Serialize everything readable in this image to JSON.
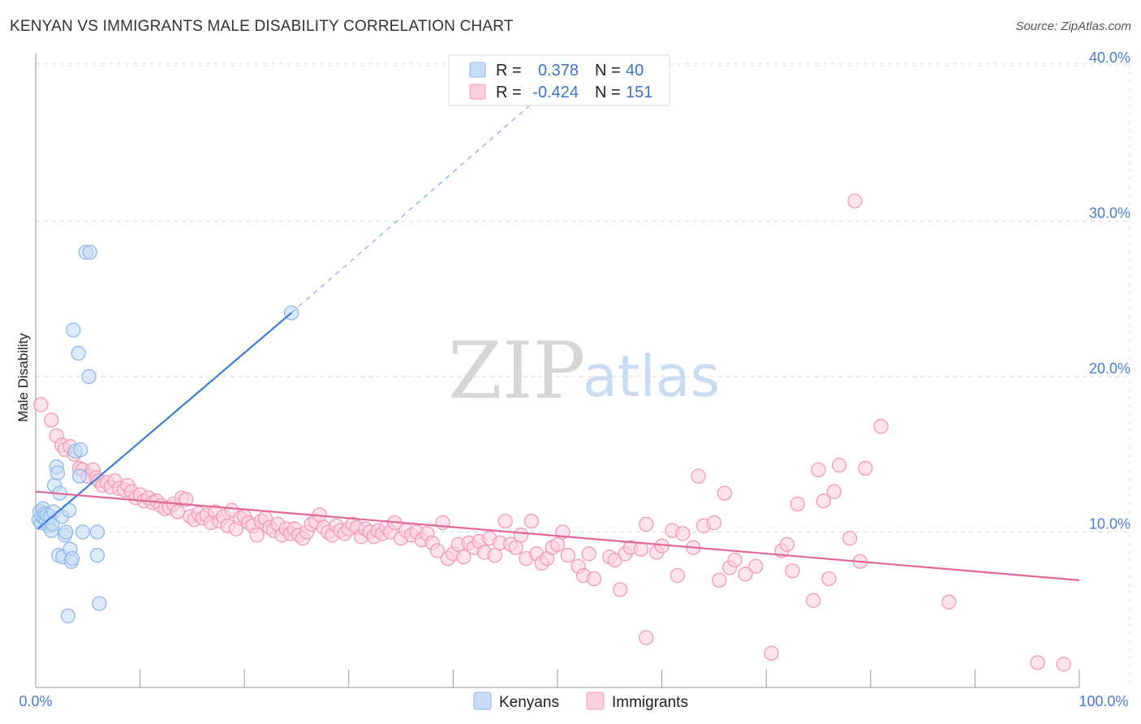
{
  "title": "KENYAN VS IMMIGRANTS MALE DISABILITY CORRELATION CHART",
  "source": "Source: ZipAtlas.com",
  "watermark": {
    "part1": "ZIP",
    "part2": "atlas"
  },
  "legend": {
    "rows": [
      {
        "r_label": "R =",
        "r_value": "0.378",
        "n_label": "N =",
        "n_value": "40",
        "color": "#8fb8ea",
        "fill": "#c7dcf6"
      },
      {
        "r_label": "R =",
        "r_value": "-0.424",
        "n_label": "N =",
        "n_value": "151",
        "color": "#f09ab8",
        "fill": "#fbd0de"
      }
    ]
  },
  "bottom_legend": [
    {
      "label": "Kenyans",
      "color": "#8fb8ea",
      "fill": "#c7dcf6"
    },
    {
      "label": "Immigrants",
      "color": "#f09ab8",
      "fill": "#fbd0de"
    }
  ],
  "chart_data": {
    "type": "scatter",
    "title": "KENYAN VS IMMIGRANTS MALE DISABILITY CORRELATION CHART",
    "xlabel": "",
    "ylabel": "Male Disability",
    "xlim": [
      0,
      100
    ],
    "ylim": [
      0,
      40
    ],
    "x_tick_labels": [
      "0.0%",
      "100.0%"
    ],
    "y_ticks": [
      10,
      20,
      30,
      40
    ],
    "y_tick_labels": [
      "10.0%",
      "20.0%",
      "30.0%",
      "40.0%"
    ],
    "grid": true,
    "series": [
      {
        "name": "Kenyans",
        "color": "#3f7fd6",
        "fill": "#c7dcf6",
        "stroke": "#8fb8ea",
        "trend": {
          "x0": 0.2,
          "y0": 10.2,
          "x1": 24.5,
          "y1": 24.1,
          "dash_to_x": 50,
          "dash_to_y": 39.0
        },
        "points": [
          [
            0.3,
            10.8
          ],
          [
            0.4,
            11.3
          ],
          [
            0.5,
            10.6
          ],
          [
            0.6,
            11.0
          ],
          [
            0.7,
            11.5
          ],
          [
            0.8,
            10.9
          ],
          [
            0.9,
            11.2
          ],
          [
            1.0,
            10.7
          ],
          [
            1.1,
            11.1
          ],
          [
            1.2,
            10.4
          ],
          [
            1.4,
            11.0
          ],
          [
            1.5,
            10.1
          ],
          [
            1.6,
            10.5
          ],
          [
            1.7,
            11.3
          ],
          [
            1.8,
            13.0
          ],
          [
            2.0,
            14.2
          ],
          [
            2.1,
            13.8
          ],
          [
            2.2,
            8.5
          ],
          [
            2.3,
            12.5
          ],
          [
            2.5,
            11.0
          ],
          [
            2.6,
            8.4
          ],
          [
            2.8,
            9.8
          ],
          [
            2.9,
            10.0
          ],
          [
            3.1,
            4.6
          ],
          [
            3.2,
            11.4
          ],
          [
            3.3,
            8.9
          ],
          [
            3.4,
            8.1
          ],
          [
            3.5,
            8.3
          ],
          [
            3.6,
            23.0
          ],
          [
            3.8,
            15.2
          ],
          [
            4.1,
            21.5
          ],
          [
            4.2,
            13.6
          ],
          [
            4.3,
            15.3
          ],
          [
            4.5,
            10.0
          ],
          [
            4.8,
            28.0
          ],
          [
            5.1,
            20.0
          ],
          [
            5.2,
            28.0
          ],
          [
            5.9,
            10.0
          ],
          [
            5.9,
            8.5
          ],
          [
            6.1,
            5.4
          ],
          [
            24.5,
            24.1
          ]
        ]
      },
      {
        "name": "Immigrants",
        "color": "#e4679a",
        "fill": "#fbd0de",
        "stroke": "#f09ab8",
        "trend": {
          "x0": 0,
          "y0": 12.6,
          "x1": 100,
          "y1": 6.9
        },
        "points": [
          [
            0.5,
            18.2
          ],
          [
            1.5,
            17.2
          ],
          [
            2.0,
            16.2
          ],
          [
            2.5,
            15.6
          ],
          [
            2.8,
            15.3
          ],
          [
            3.3,
            15.5
          ],
          [
            3.7,
            15.0
          ],
          [
            4.2,
            14.1
          ],
          [
            4.5,
            14.0
          ],
          [
            5.0,
            13.6
          ],
          [
            5.5,
            14.0
          ],
          [
            5.8,
            13.5
          ],
          [
            6.0,
            13.3
          ],
          [
            6.4,
            13.0
          ],
          [
            6.8,
            13.2
          ],
          [
            7.2,
            12.9
          ],
          [
            7.6,
            13.3
          ],
          [
            8.0,
            12.8
          ],
          [
            8.5,
            12.7
          ],
          [
            8.8,
            13.0
          ],
          [
            9.2,
            12.6
          ],
          [
            9.6,
            12.2
          ],
          [
            10.0,
            12.4
          ],
          [
            10.4,
            12.0
          ],
          [
            10.8,
            12.2
          ],
          [
            11.2,
            11.9
          ],
          [
            11.6,
            12.0
          ],
          [
            12.0,
            11.7
          ],
          [
            12.4,
            11.5
          ],
          [
            12.8,
            11.6
          ],
          [
            13.2,
            11.8
          ],
          [
            13.6,
            11.3
          ],
          [
            14.0,
            12.2
          ],
          [
            14.4,
            12.1
          ],
          [
            14.8,
            11.0
          ],
          [
            15.2,
            10.8
          ],
          [
            15.6,
            11.2
          ],
          [
            16.0,
            10.9
          ],
          [
            16.4,
            11.1
          ],
          [
            16.8,
            10.6
          ],
          [
            17.2,
            11.3
          ],
          [
            17.6,
            10.7
          ],
          [
            18.0,
            11.0
          ],
          [
            18.4,
            10.4
          ],
          [
            18.8,
            11.4
          ],
          [
            19.2,
            10.2
          ],
          [
            19.6,
            10.9
          ],
          [
            20.0,
            11.0
          ],
          [
            20.4,
            10.6
          ],
          [
            20.8,
            10.4
          ],
          [
            21.2,
            9.8
          ],
          [
            21.6,
            10.7
          ],
          [
            22.0,
            10.9
          ],
          [
            22.4,
            10.3
          ],
          [
            22.8,
            10.1
          ],
          [
            23.2,
            10.5
          ],
          [
            23.6,
            9.8
          ],
          [
            24.0,
            10.2
          ],
          [
            24.4,
            9.9
          ],
          [
            24.8,
            10.2
          ],
          [
            25.2,
            9.8
          ],
          [
            25.6,
            9.6
          ],
          [
            26.0,
            10.0
          ],
          [
            26.4,
            10.5
          ],
          [
            26.8,
            10.7
          ],
          [
            27.2,
            11.1
          ],
          [
            27.6,
            10.3
          ],
          [
            28.0,
            10.0
          ],
          [
            28.4,
            9.8
          ],
          [
            28.8,
            10.4
          ],
          [
            29.2,
            10.1
          ],
          [
            29.6,
            9.9
          ],
          [
            30.0,
            10.2
          ],
          [
            30.4,
            10.5
          ],
          [
            30.8,
            10.3
          ],
          [
            31.2,
            9.7
          ],
          [
            31.6,
            10.2
          ],
          [
            32.0,
            10.0
          ],
          [
            32.4,
            9.7
          ],
          [
            32.8,
            10.1
          ],
          [
            33.2,
            9.9
          ],
          [
            33.6,
            10.3
          ],
          [
            34.0,
            10.0
          ],
          [
            34.4,
            10.6
          ],
          [
            35.0,
            9.6
          ],
          [
            35.5,
            10.1
          ],
          [
            36.0,
            9.8
          ],
          [
            36.5,
            10.0
          ],
          [
            37.0,
            9.5
          ],
          [
            37.5,
            9.9
          ],
          [
            38.0,
            9.3
          ],
          [
            38.5,
            8.8
          ],
          [
            39.0,
            10.6
          ],
          [
            39.5,
            8.3
          ],
          [
            40.0,
            8.6
          ],
          [
            40.5,
            9.2
          ],
          [
            41.0,
            8.4
          ],
          [
            41.5,
            9.3
          ],
          [
            42.0,
            9.0
          ],
          [
            42.5,
            9.4
          ],
          [
            43.0,
            8.7
          ],
          [
            43.5,
            9.6
          ],
          [
            44.0,
            8.5
          ],
          [
            44.5,
            9.3
          ],
          [
            45.0,
            10.7
          ],
          [
            45.5,
            9.2
          ],
          [
            46.0,
            9.0
          ],
          [
            46.5,
            9.8
          ],
          [
            47.0,
            8.3
          ],
          [
            47.5,
            10.7
          ],
          [
            48.0,
            8.6
          ],
          [
            48.5,
            8.0
          ],
          [
            49.0,
            8.3
          ],
          [
            49.5,
            9.0
          ],
          [
            50.0,
            9.2
          ],
          [
            50.5,
            10.0
          ],
          [
            51.0,
            8.5
          ],
          [
            52.0,
            7.8
          ],
          [
            52.5,
            7.2
          ],
          [
            53.0,
            8.6
          ],
          [
            53.5,
            7.0
          ],
          [
            55.0,
            8.4
          ],
          [
            55.5,
            8.2
          ],
          [
            56.0,
            6.3
          ],
          [
            56.5,
            8.6
          ],
          [
            57.0,
            9.0
          ],
          [
            58.0,
            8.9
          ],
          [
            58.5,
            10.5
          ],
          [
            59.5,
            8.7
          ],
          [
            60.0,
            9.1
          ],
          [
            61.0,
            10.1
          ],
          [
            61.5,
            7.2
          ],
          [
            62.0,
            9.9
          ],
          [
            63.0,
            9.0
          ],
          [
            63.5,
            13.6
          ],
          [
            64.0,
            10.4
          ],
          [
            65.0,
            10.6
          ],
          [
            65.5,
            6.9
          ],
          [
            66.0,
            12.5
          ],
          [
            66.5,
            7.7
          ],
          [
            67.0,
            8.2
          ],
          [
            68.0,
            7.3
          ],
          [
            69.0,
            7.8
          ],
          [
            71.5,
            8.8
          ],
          [
            72.0,
            9.2
          ],
          [
            72.5,
            7.5
          ],
          [
            73.0,
            11.8
          ],
          [
            74.5,
            5.6
          ],
          [
            75.0,
            14.0
          ],
          [
            75.5,
            12.0
          ],
          [
            76.0,
            7.0
          ],
          [
            76.5,
            12.6
          ],
          [
            77.0,
            14.3
          ],
          [
            78.0,
            9.6
          ],
          [
            79.0,
            8.1
          ],
          [
            79.5,
            14.1
          ],
          [
            81.0,
            16.8
          ],
          [
            87.5,
            5.5
          ],
          [
            70.5,
            2.2
          ],
          [
            78.5,
            31.3
          ],
          [
            58.5,
            3.2
          ],
          [
            96.0,
            1.6
          ],
          [
            98.5,
            1.5
          ]
        ]
      }
    ]
  }
}
